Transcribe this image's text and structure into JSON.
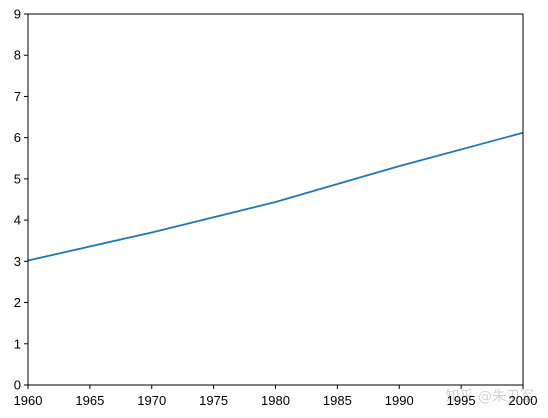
{
  "chart_data": {
    "type": "line",
    "title": "",
    "xlabel": "",
    "ylabel": "",
    "xlim": [
      1960,
      2000
    ],
    "ylim": [
      0,
      9
    ],
    "x_ticks": [
      1960,
      1965,
      1970,
      1975,
      1980,
      1985,
      1990,
      1995,
      2000
    ],
    "y_ticks": [
      0,
      1,
      2,
      3,
      4,
      5,
      6,
      7,
      8,
      9
    ],
    "grid": false,
    "legend": "none",
    "series": [
      {
        "color": "#1f77b4",
        "x": [
          1960,
          1970,
          1980,
          1990,
          2000
        ],
        "y": [
          3.02,
          3.7,
          4.44,
          5.31,
          6.12
        ]
      }
    ]
  },
  "watermark": {
    "text": "知乎 @朱卫军"
  }
}
